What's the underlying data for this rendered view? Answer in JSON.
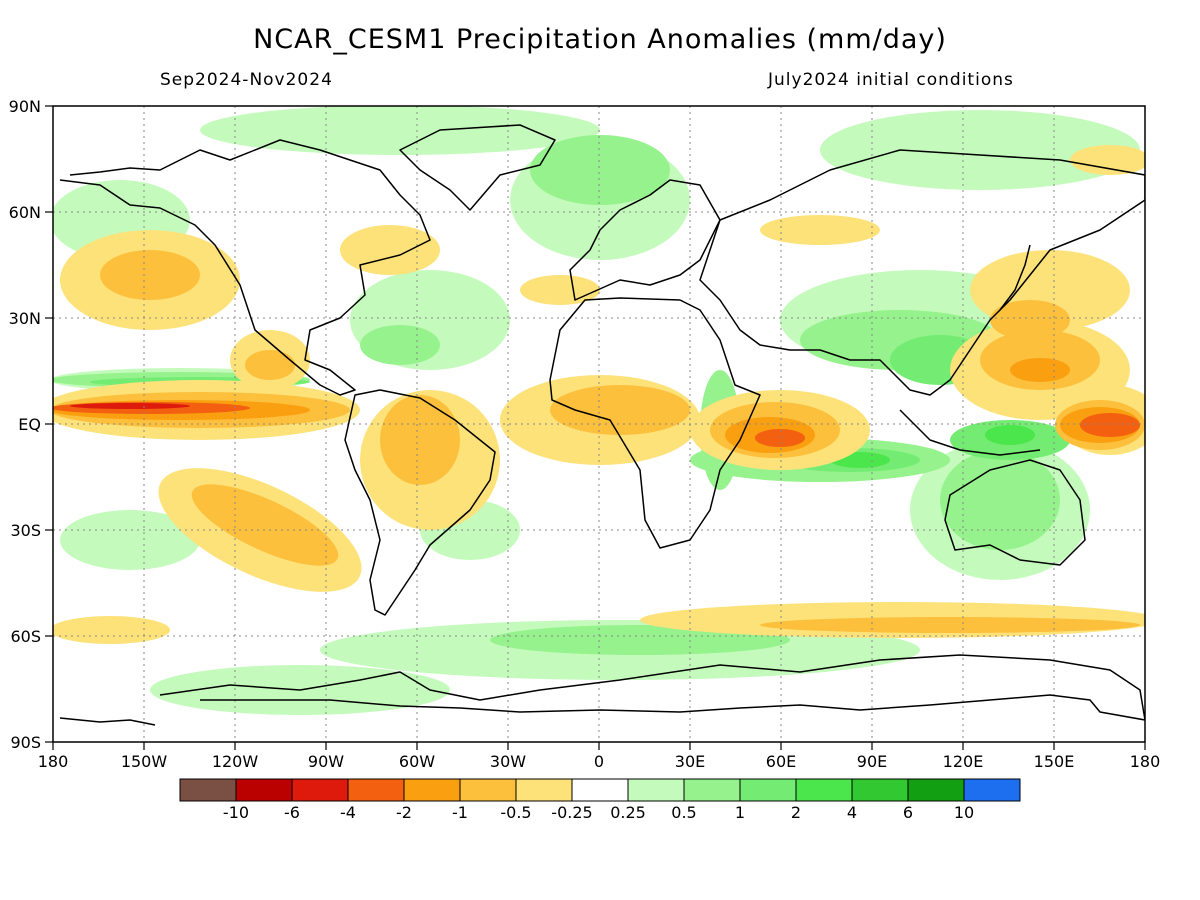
{
  "title": "NCAR_CESM1 Precipitation Anomalies (mm/day)",
  "subtitle_left": "Sep2024-Nov2024",
  "subtitle_right": "July2024 initial conditions",
  "lat_labels": [
    "90N",
    "60N",
    "30N",
    "EQ",
    "30S",
    "60S",
    "90S"
  ],
  "lon_labels": [
    "180",
    "150W",
    "120W",
    "90W",
    "60W",
    "30W",
    "0",
    "30E",
    "60E",
    "90E",
    "120E",
    "150E",
    "180"
  ],
  "colorbar": {
    "colors": [
      "#7a5044",
      "#bb0000",
      "#dd1a0c",
      "#f26010",
      "#f99f10",
      "#fcc03c",
      "#fde27a",
      "#ffffff",
      "#c4fbbc",
      "#96f28c",
      "#74ec74",
      "#4be64b",
      "#32c832",
      "#12a012",
      "#1e6ef0"
    ],
    "labels": [
      "-10",
      "-6",
      "-4",
      "-2",
      "-1",
      "-0.5",
      "-0.25",
      "0.25",
      "0.5",
      "1",
      "2",
      "4",
      "6",
      "10"
    ]
  },
  "colors": {
    "coastline": "#000000",
    "grid": "#888888"
  }
}
